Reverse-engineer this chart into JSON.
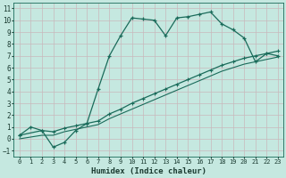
{
  "xlabel": "Humidex (Indice chaleur)",
  "bg_color": "#c5e8e0",
  "grid_color": "#c8b8bc",
  "line_color": "#1a6b5a",
  "xlim": [
    -0.5,
    23.5
  ],
  "ylim": [
    -1.5,
    11.5
  ],
  "xticks": [
    0,
    1,
    2,
    3,
    4,
    5,
    6,
    7,
    8,
    9,
    10,
    11,
    12,
    13,
    14,
    15,
    16,
    17,
    18,
    19,
    20,
    21,
    22,
    23
  ],
  "yticks": [
    -1,
    0,
    1,
    2,
    3,
    4,
    5,
    6,
    7,
    8,
    9,
    10,
    11
  ],
  "line1_x": [
    0,
    1,
    2,
    3,
    4,
    5,
    6,
    7,
    8,
    9,
    10,
    11,
    12,
    13,
    14,
    15,
    16,
    17,
    18,
    19,
    20,
    21,
    22,
    23
  ],
  "line1_y": [
    0.3,
    1.0,
    0.7,
    -0.7,
    -0.3,
    0.7,
    1.3,
    4.2,
    7.0,
    8.7,
    10.2,
    10.1,
    10.0,
    8.7,
    10.2,
    10.3,
    10.5,
    10.7,
    9.7,
    9.2,
    8.5,
    6.5,
    7.2,
    7.0
  ],
  "line2_x": [
    0,
    2,
    3,
    4,
    5,
    6,
    7,
    8,
    9,
    10,
    11,
    12,
    13,
    14,
    15,
    16,
    17,
    18,
    19,
    20,
    21,
    22,
    23
  ],
  "line2_y": [
    0.3,
    0.7,
    0.6,
    0.9,
    1.1,
    1.3,
    1.5,
    2.1,
    2.5,
    3.0,
    3.4,
    3.8,
    4.2,
    4.6,
    5.0,
    5.4,
    5.8,
    6.2,
    6.5,
    6.8,
    7.0,
    7.2,
    7.4
  ],
  "line3_x": [
    0,
    2,
    3,
    4,
    5,
    6,
    7,
    8,
    9,
    10,
    11,
    12,
    13,
    14,
    15,
    16,
    17,
    18,
    19,
    20,
    21,
    22,
    23
  ],
  "line3_y": [
    0.0,
    0.3,
    0.3,
    0.6,
    0.8,
    1.0,
    1.2,
    1.7,
    2.1,
    2.5,
    2.9,
    3.3,
    3.7,
    4.1,
    4.5,
    4.9,
    5.3,
    5.7,
    6.0,
    6.3,
    6.5,
    6.7,
    6.9
  ]
}
